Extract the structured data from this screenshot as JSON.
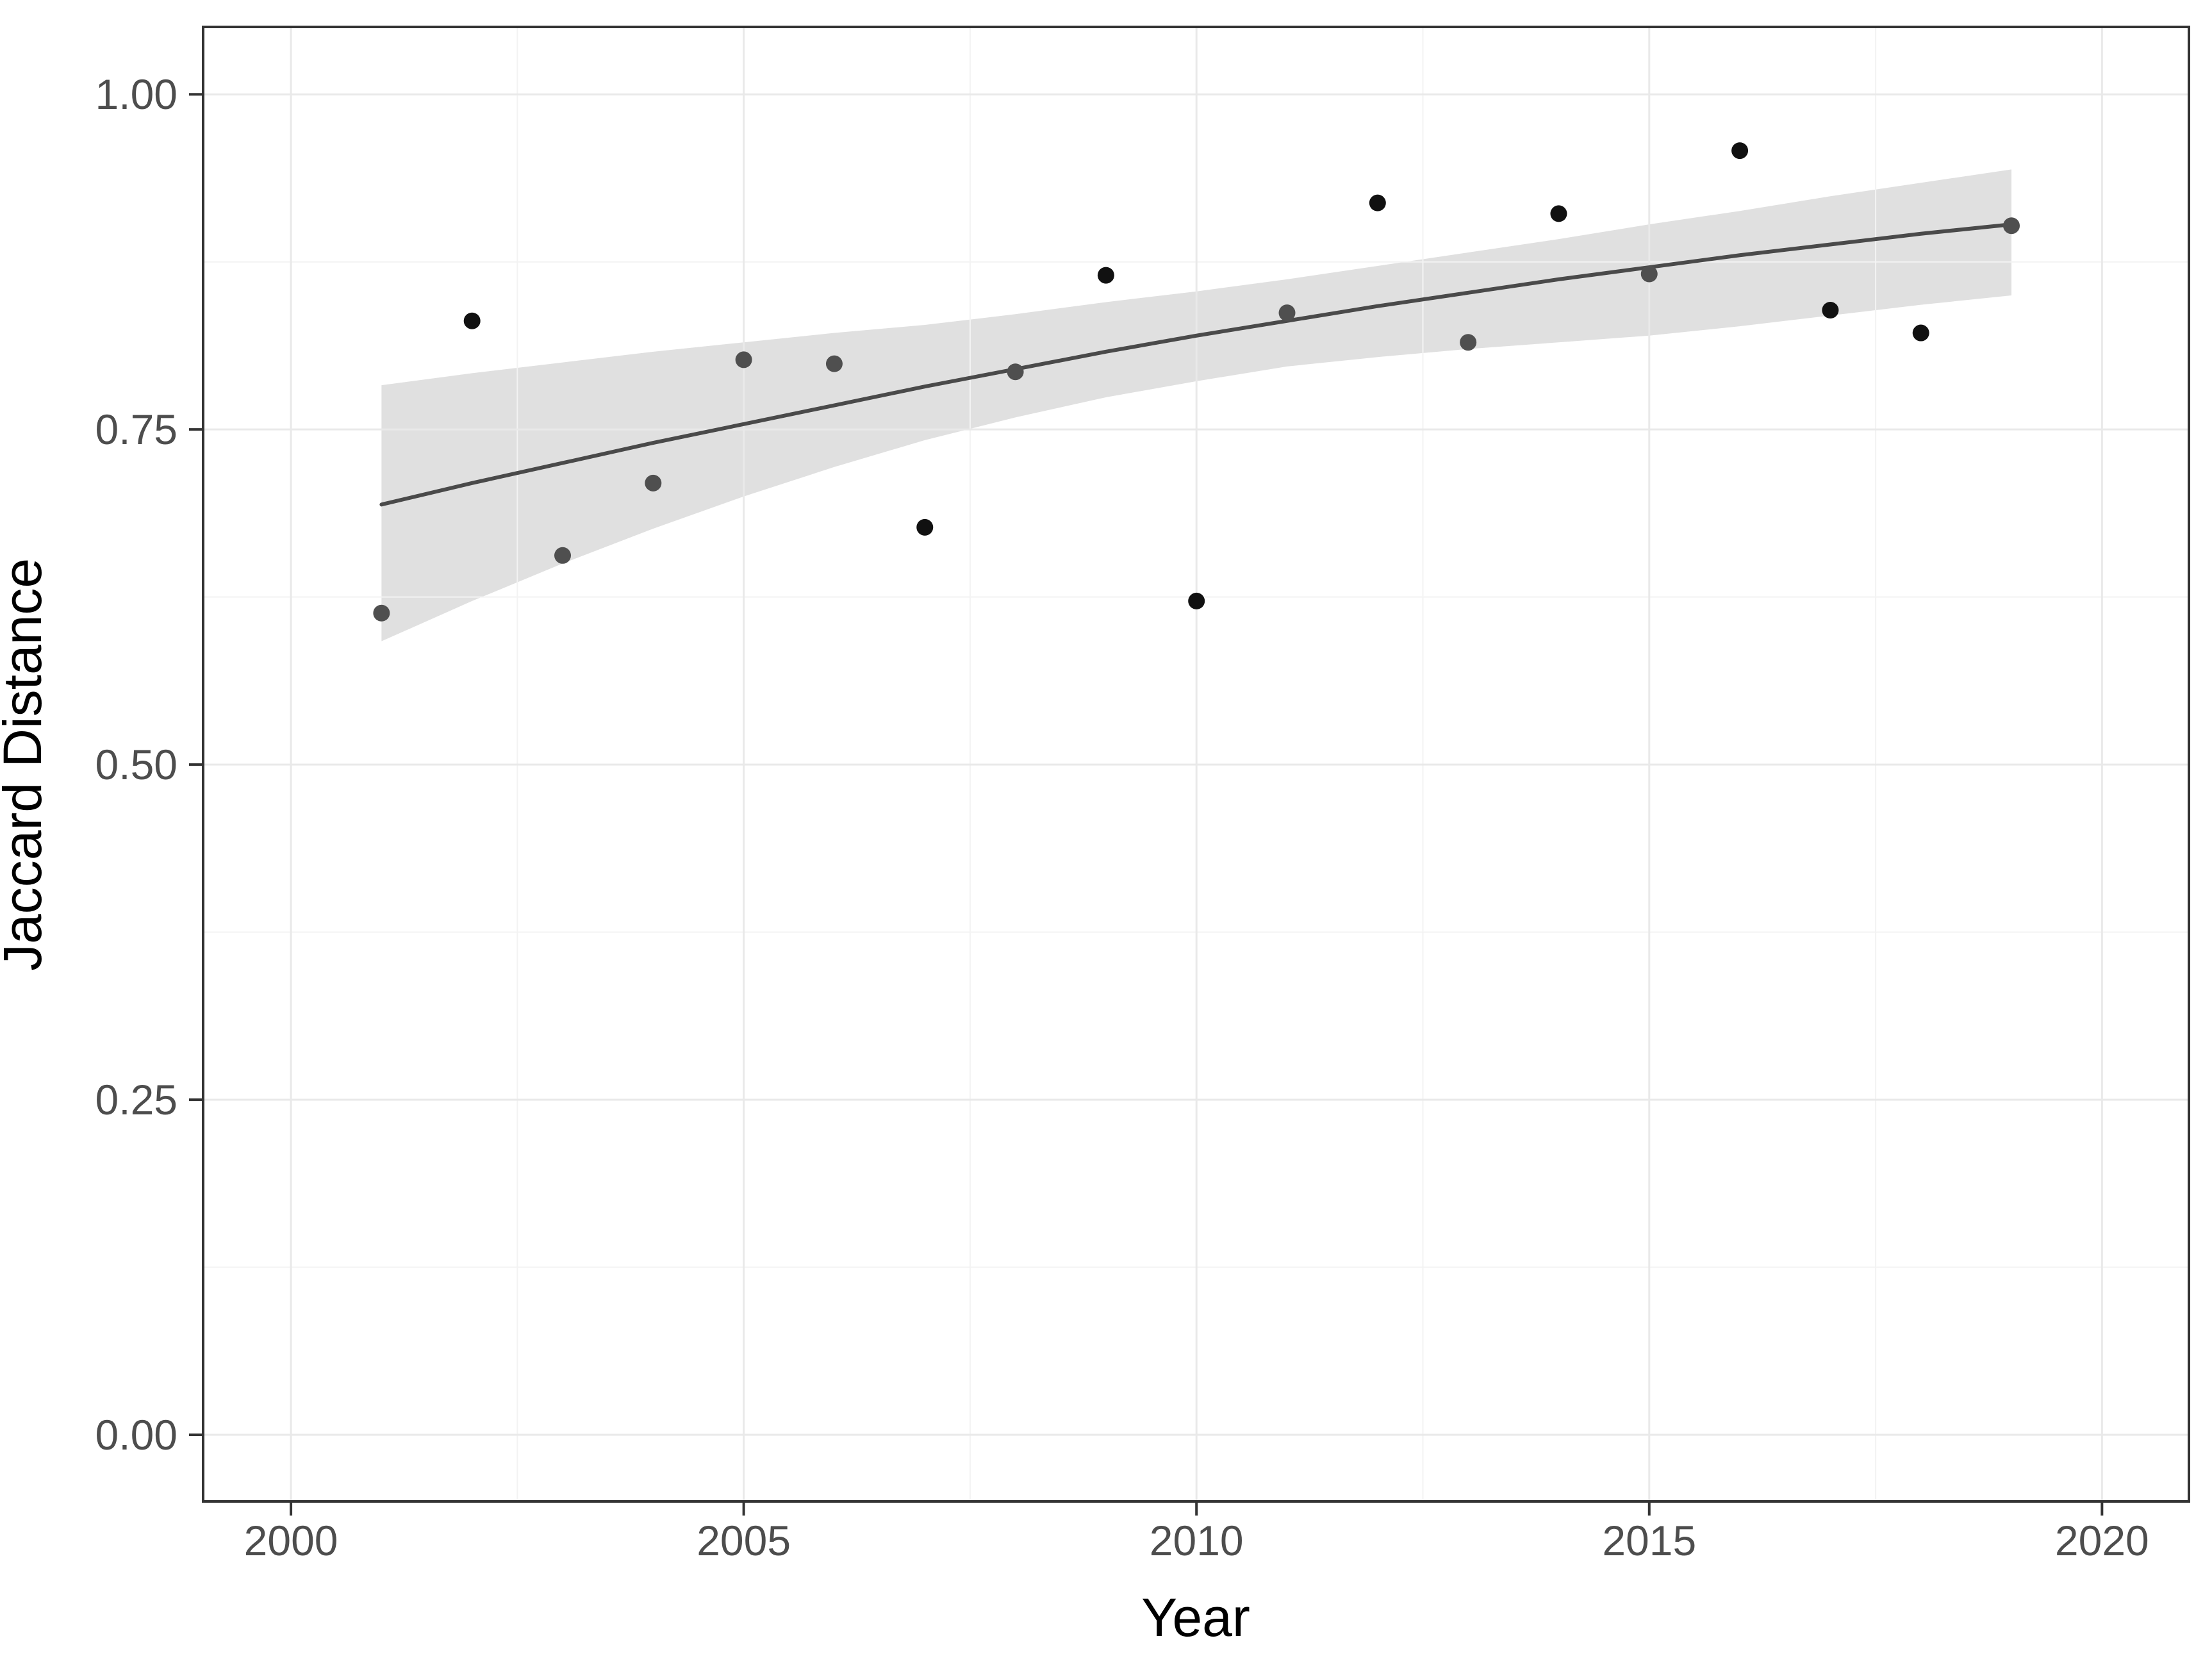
{
  "figure": {
    "background": "#ffffff"
  },
  "chart_data": {
    "type": "scatter",
    "title": "",
    "xlabel": "Year",
    "ylabel": "Jaccard Distance",
    "legend": "none",
    "grid": "major-and-minor",
    "xlim": [
      1999.03,
      2020.96
    ],
    "ylim": [
      -0.0497,
      1.0503
    ],
    "x_ticks": [
      2000,
      2005,
      2010,
      2015,
      2020
    ],
    "x_tick_labels": [
      "2000",
      "2005",
      "2010",
      "2015",
      "2020"
    ],
    "x_minor_ticks": [
      2002.5,
      2007.5,
      2012.5,
      2017.5
    ],
    "y_ticks": [
      1.0,
      0.75,
      0.5,
      0.25,
      0.0
    ],
    "y_tick_labels": [
      "1.00",
      "0.75",
      "0.50",
      "0.25",
      "0.00"
    ],
    "y_minor_ticks": [
      0.875,
      0.625,
      0.375,
      0.125
    ],
    "points": [
      {
        "year": 2001,
        "value": 0.613,
        "shade": "gray"
      },
      {
        "year": 2002,
        "value": 0.831,
        "shade": "black"
      },
      {
        "year": 2003,
        "value": 0.656,
        "shade": "gray"
      },
      {
        "year": 2004,
        "value": 0.71,
        "shade": "gray"
      },
      {
        "year": 2005,
        "value": 0.802,
        "shade": "gray"
      },
      {
        "year": 2006,
        "value": 0.799,
        "shade": "gray"
      },
      {
        "year": 2007,
        "value": 0.677,
        "shade": "black"
      },
      {
        "year": 2008,
        "value": 0.793,
        "shade": "gray"
      },
      {
        "year": 2009,
        "value": 0.865,
        "shade": "black"
      },
      {
        "year": 2010,
        "value": 0.622,
        "shade": "black"
      },
      {
        "year": 2011,
        "value": 0.837,
        "shade": "gray"
      },
      {
        "year": 2012,
        "value": 0.919,
        "shade": "black"
      },
      {
        "year": 2013,
        "value": 0.815,
        "shade": "gray"
      },
      {
        "year": 2014,
        "value": 0.911,
        "shade": "black"
      },
      {
        "year": 2015,
        "value": 0.866,
        "shade": "gray"
      },
      {
        "year": 2016,
        "value": 0.958,
        "shade": "black"
      },
      {
        "year": 2017,
        "value": 0.839,
        "shade": "black"
      },
      {
        "year": 2018,
        "value": 0.822,
        "shade": "black"
      },
      {
        "year": 2019,
        "value": 0.902,
        "shade": "gray"
      }
    ],
    "smooth_line": {
      "x": [
        2001,
        2002,
        2003,
        2004,
        2005,
        2006,
        2007,
        2008,
        2009,
        2010,
        2011,
        2012,
        2013,
        2014,
        2015,
        2016,
        2017,
        2018,
        2019
      ],
      "y": [
        0.694,
        0.71,
        0.725,
        0.74,
        0.754,
        0.768,
        0.782,
        0.795,
        0.808,
        0.82,
        0.831,
        0.842,
        0.852,
        0.862,
        0.871,
        0.88,
        0.888,
        0.896,
        0.903
      ]
    },
    "ribbon": {
      "x": [
        2001,
        2002,
        2003,
        2004,
        2005,
        2006,
        2007,
        2008,
        2009,
        2010,
        2011,
        2012,
        2013,
        2014,
        2015,
        2016,
        2017,
        2018,
        2019
      ],
      "upper": [
        0.783,
        0.792,
        0.8,
        0.808,
        0.815,
        0.822,
        0.828,
        0.836,
        0.845,
        0.853,
        0.862,
        0.872,
        0.882,
        0.892,
        0.903,
        0.913,
        0.924,
        0.934,
        0.944
      ],
      "lower": [
        0.592,
        0.622,
        0.65,
        0.676,
        0.7,
        0.722,
        0.742,
        0.759,
        0.774,
        0.786,
        0.797,
        0.804,
        0.81,
        0.815,
        0.82,
        0.827,
        0.835,
        0.843,
        0.85
      ]
    }
  },
  "colors": {
    "point_black": "#111111",
    "point_gray": "#4f4f4f",
    "trend_line": "#4a4a4a",
    "ribbon_fill": "#e0e0e0",
    "grid_major": "#e9e9e9",
    "grid_minor": "#f3f3f3",
    "panel_border": "#333333",
    "tick_mark": "#333333",
    "tick_label": "#4d4d4d",
    "axis_title": "#000000",
    "panel_background": "#ffffff"
  }
}
